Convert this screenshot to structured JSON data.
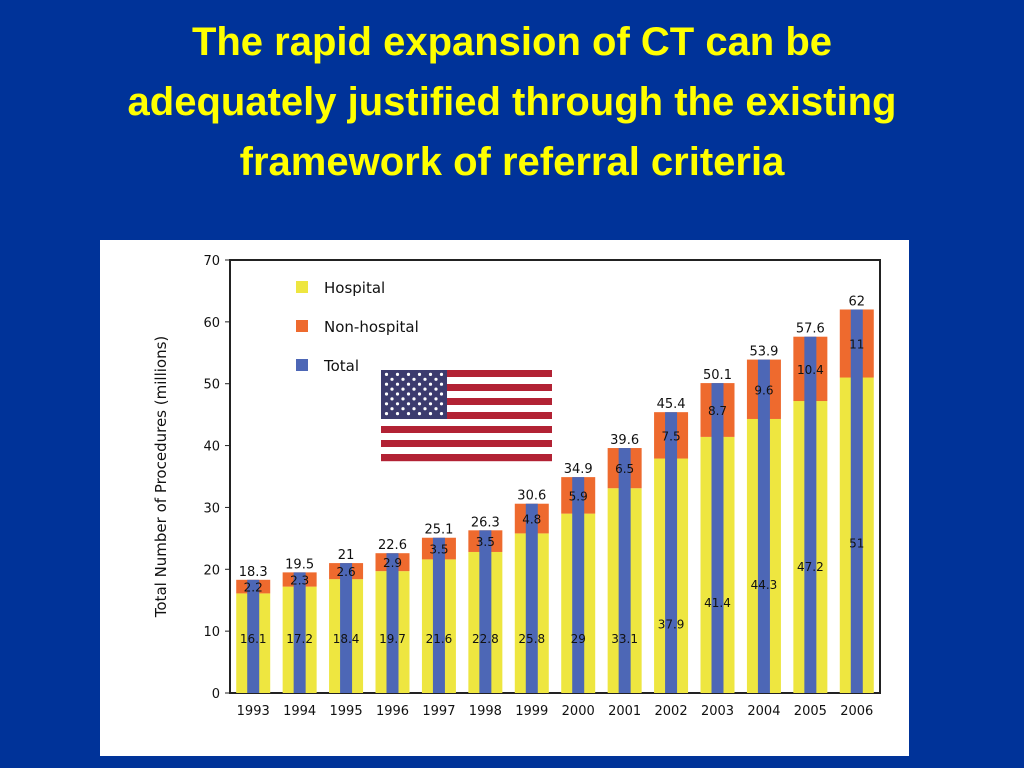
{
  "slide": {
    "title_lines": [
      "The rapid expansion of CT can be",
      "adequately justified through the existing",
      "framework of referral criteria"
    ]
  },
  "colors": {
    "background": "#003399",
    "title": "#ffff00",
    "hospital": "#eee640",
    "non_hospital": "#ee6a2e",
    "total": "#4d67b6"
  },
  "flag": {
    "icon": "us-flag-icon"
  },
  "chart_data": {
    "type": "bar",
    "stacked": true,
    "ylabel": "Total Number of Procedures (millions)",
    "xlabel": "",
    "ylim": [
      0,
      70
    ],
    "yticks": [
      0,
      10,
      20,
      30,
      40,
      50,
      60,
      70
    ],
    "legend_position": "top-left",
    "grid": false,
    "categories": [
      "1993",
      "1994",
      "1995",
      "1996",
      "1997",
      "1998",
      "1999",
      "2000",
      "2001",
      "2002",
      "2003",
      "2004",
      "2005",
      "2006"
    ],
    "series": [
      {
        "name": "Hospital",
        "color": "#eee640",
        "values": [
          16.1,
          17.2,
          18.4,
          19.7,
          21.6,
          22.8,
          25.8,
          29,
          33.1,
          37.9,
          41.4,
          44.3,
          47.2,
          51
        ],
        "labels": [
          "16.1",
          "17.2",
          "18.4",
          "19.7",
          "21.6",
          "22.8",
          "25.8",
          "29",
          "33.1",
          "37.9",
          "41.4",
          "44.3",
          "47.2",
          "51"
        ]
      },
      {
        "name": "Non-hospital",
        "color": "#ee6a2e",
        "values": [
          2.2,
          2.3,
          2.6,
          2.9,
          3.5,
          3.5,
          4.8,
          5.9,
          6.5,
          7.5,
          8.7,
          9.6,
          10.4,
          11
        ],
        "labels": [
          "2.2",
          "2.3",
          "2.6",
          "2.9",
          "3.5",
          "3.5",
          "4.8",
          "5.9",
          "6.5",
          "7.5",
          "8.7",
          "9.6",
          "10.4",
          "11"
        ]
      },
      {
        "name": "Total",
        "color": "#4d67b6",
        "values": [
          18.3,
          19.5,
          21,
          22.6,
          25.1,
          26.3,
          30.6,
          34.9,
          39.6,
          45.4,
          50.1,
          53.9,
          57.6,
          62
        ],
        "labels": [
          "18.3",
          "19.5",
          "21",
          "22.6",
          "25.1",
          "26.3",
          "30.6",
          "34.9",
          "39.6",
          "45.4",
          "50.1",
          "53.9",
          "57.6",
          "62"
        ]
      }
    ]
  }
}
